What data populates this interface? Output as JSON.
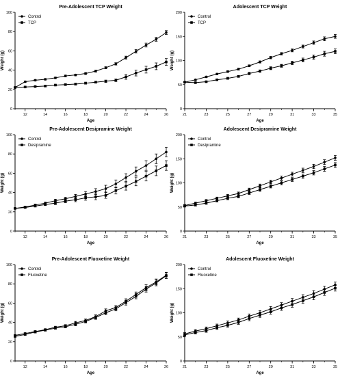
{
  "chart_data": [
    {
      "type": "line",
      "title": "Pre-Adolescent TCP Weight",
      "xlabel": "Age",
      "ylabel": "Weight (g)",
      "xlim": [
        11,
        26
      ],
      "ylim": [
        0,
        100
      ],
      "xticks": [
        12,
        14,
        16,
        18,
        20,
        22,
        24,
        26
      ],
      "yticks": [
        0,
        20,
        40,
        60,
        80,
        100
      ],
      "legend": "top-left",
      "x": [
        11,
        12,
        13,
        14,
        15,
        16,
        17,
        18,
        19,
        20,
        21,
        22,
        23,
        24,
        25,
        26
      ],
      "series": [
        {
          "name": "Control",
          "marker": "circle",
          "values": [
            22,
            28,
            29.5,
            30.5,
            32,
            34,
            35,
            36.5,
            39,
            42.5,
            46.5,
            53,
            59.5,
            66,
            72,
            79
          ],
          "err": [
            0.5,
            0.8,
            0.8,
            0.8,
            0.8,
            0.9,
            0.9,
            1,
            1,
            1,
            1.2,
            1.5,
            1.8,
            2,
            2,
            2
          ]
        },
        {
          "name": "TCP",
          "marker": "square",
          "values": [
            22,
            22.5,
            23,
            23.5,
            24.5,
            25,
            25.5,
            26.5,
            27.5,
            28.5,
            29.5,
            33,
            37,
            40.5,
            44,
            48.5
          ],
          "err": [
            0.5,
            0.8,
            0.8,
            0.8,
            0.8,
            0.9,
            0.9,
            1,
            1,
            1.2,
            1.3,
            2.5,
            3,
            3.5,
            3.5,
            3.5
          ]
        }
      ]
    },
    {
      "type": "line",
      "title": "Adolescent TCP Weight",
      "xlabel": "Age",
      "ylabel": "Weight (g)",
      "xlim": [
        21,
        35
      ],
      "ylim": [
        0,
        200
      ],
      "xticks": [
        21,
        23,
        25,
        27,
        29,
        31,
        33,
        35
      ],
      "yticks": [
        0,
        50,
        100,
        150,
        200
      ],
      "legend": "top-left",
      "x": [
        21,
        22,
        23,
        24,
        25,
        26,
        27,
        28,
        29,
        30,
        31,
        32,
        33,
        34,
        35
      ],
      "series": [
        {
          "name": "Control",
          "marker": "circle",
          "values": [
            55,
            60,
            66,
            72,
            77,
            82,
            89,
            97,
            106,
            114,
            121,
            129,
            137,
            145,
            150
          ],
          "err": [
            1,
            1.2,
            1.5,
            1.5,
            1.8,
            2,
            2,
            2.2,
            2.5,
            2.5,
            3,
            3,
            3.5,
            4,
            4
          ]
        },
        {
          "name": "TCP",
          "marker": "square",
          "values": [
            55,
            54,
            56,
            60,
            63,
            67,
            73,
            78,
            84,
            89,
            95,
            101,
            107,
            114,
            119
          ],
          "err": [
            1,
            1.2,
            1.5,
            1.5,
            2,
            2,
            2.5,
            2.5,
            3,
            3,
            3.5,
            4,
            4.5,
            5,
            5
          ]
        }
      ]
    },
    {
      "type": "line",
      "title": "Pre-Adolescent Desipramine Weight",
      "xlabel": "Age",
      "ylabel": "Weight (g)",
      "xlim": [
        11,
        26
      ],
      "ylim": [
        0,
        100
      ],
      "xticks": [
        12,
        14,
        16,
        18,
        20,
        22,
        24,
        26
      ],
      "yticks": [
        0,
        20,
        40,
        60,
        80,
        100
      ],
      "legend": "top-left",
      "x": [
        11,
        12,
        13,
        14,
        15,
        16,
        17,
        18,
        19,
        20,
        21,
        22,
        23,
        24,
        25,
        26
      ],
      "series": [
        {
          "name": "Control",
          "marker": "circle",
          "values": [
            23.5,
            25,
            27,
            29,
            31.5,
            33.5,
            36,
            38.5,
            41,
            44,
            49,
            55.5,
            62,
            68,
            75,
            82
          ],
          "err": [
            0.5,
            0.8,
            1,
            1,
            1.5,
            1.5,
            2,
            2.5,
            3,
            3.5,
            4,
            4,
            4.5,
            5,
            5,
            5
          ]
        },
        {
          "name": "Desipramine",
          "marker": "square",
          "values": [
            23.5,
            24.5,
            26,
            27.5,
            29,
            31,
            32.5,
            34.5,
            35.5,
            37,
            42,
            46.5,
            51.5,
            57,
            62.5,
            68
          ],
          "err": [
            0.5,
            0.8,
            1,
            1,
            1.5,
            1.5,
            2,
            2.5,
            3,
            3,
            3.5,
            4,
            4.5,
            5,
            5,
            5
          ]
        }
      ]
    },
    {
      "type": "line",
      "title": "Adolescent Desipramine Weight",
      "xlabel": "Age",
      "ylabel": "Weight (g)",
      "xlim": [
        21,
        35
      ],
      "ylim": [
        0,
        200
      ],
      "xticks": [
        21,
        23,
        25,
        27,
        29,
        31,
        33,
        35
      ],
      "yticks": [
        0,
        50,
        100,
        150,
        200
      ],
      "legend": "top-left",
      "x": [
        21,
        22,
        23,
        24,
        25,
        26,
        27,
        28,
        29,
        30,
        31,
        32,
        33,
        34,
        35
      ],
      "series": [
        {
          "name": "Control",
          "marker": "circle",
          "values": [
            53,
            58,
            63,
            68,
            73,
            78,
            86,
            94,
            102,
            110,
            118,
            126,
            134,
            143,
            152
          ],
          "err": [
            2,
            2,
            2.5,
            2.5,
            3,
            3,
            3,
            3.5,
            3.5,
            4,
            4,
            4.5,
            4.5,
            5,
            5
          ]
        },
        {
          "name": "Desipramine",
          "marker": "square",
          "values": [
            52,
            54,
            58,
            63,
            68,
            72,
            79,
            86,
            93,
            100,
            107,
            114,
            121,
            129,
            137
          ],
          "err": [
            2,
            2,
            2.5,
            2.5,
            3,
            3,
            3,
            3.5,
            3.5,
            4,
            4,
            4.5,
            4.5,
            5,
            5
          ]
        }
      ]
    },
    {
      "type": "line",
      "title": "Pre-Adolescent Fluoxetine Weight",
      "xlabel": "Age",
      "ylabel": "Weight (g)",
      "xlim": [
        11,
        26
      ],
      "ylim": [
        0,
        100
      ],
      "xticks": [
        12,
        14,
        16,
        18,
        20,
        22,
        24,
        26
      ],
      "yticks": [
        0,
        20,
        40,
        60,
        80,
        100
      ],
      "legend": "top-left",
      "x": [
        11,
        12,
        13,
        14,
        15,
        16,
        17,
        18,
        19,
        20,
        21,
        22,
        23,
        24,
        25,
        26
      ],
      "series": [
        {
          "name": "Control",
          "marker": "circle",
          "values": [
            26.5,
            28.5,
            30.5,
            32.5,
            35,
            36.5,
            39.5,
            42,
            46,
            52,
            55.5,
            62,
            69,
            76,
            82,
            89
          ],
          "err": [
            0.8,
            0.8,
            1,
            1,
            1,
            1.2,
            1.5,
            1.5,
            1.8,
            2,
            2,
            2.5,
            2.5,
            3,
            3,
            3
          ]
        },
        {
          "name": "Fluoxetine",
          "marker": "square",
          "values": [
            25.5,
            27.5,
            30,
            32,
            34,
            35.5,
            38,
            41,
            45,
            50,
            54,
            60.5,
            67,
            74.5,
            81,
            88.5
          ],
          "err": [
            0.8,
            0.8,
            1,
            1,
            1,
            1.2,
            1.5,
            1.5,
            1.8,
            2,
            2,
            2.5,
            2.5,
            3,
            3,
            3
          ]
        }
      ]
    },
    {
      "type": "line",
      "title": "Adolescent Fluoxetine Weight",
      "xlabel": "Age",
      "ylabel": "Weight (g)",
      "xlim": [
        21,
        35
      ],
      "ylim": [
        0,
        200
      ],
      "xticks": [
        21,
        23,
        25,
        27,
        29,
        31,
        33,
        35
      ],
      "yticks": [
        0,
        50,
        100,
        150,
        200
      ],
      "legend": "top-left",
      "x": [
        21,
        22,
        23,
        24,
        25,
        26,
        27,
        28,
        29,
        30,
        31,
        32,
        33,
        34,
        35
      ],
      "series": [
        {
          "name": "Control",
          "marker": "circle",
          "values": [
            56,
            62,
            67,
            73,
            79,
            85,
            93,
            100,
            108,
            116,
            124,
            132,
            140,
            149,
            158
          ],
          "err": [
            3,
            3,
            3.5,
            3.5,
            4,
            4,
            4.5,
            4.5,
            5,
            5,
            5.5,
            5.5,
            6,
            6,
            6
          ]
        },
        {
          "name": "Fluoxetine",
          "marker": "square",
          "values": [
            54,
            59,
            63,
            69,
            74,
            80,
            88,
            95,
            102,
            110,
            117,
            125,
            133,
            142,
            151
          ],
          "err": [
            3,
            3,
            3.5,
            3.5,
            4,
            4,
            4.5,
            4.5,
            5,
            5,
            5.5,
            5.5,
            6,
            6,
            6
          ]
        }
      ]
    }
  ]
}
